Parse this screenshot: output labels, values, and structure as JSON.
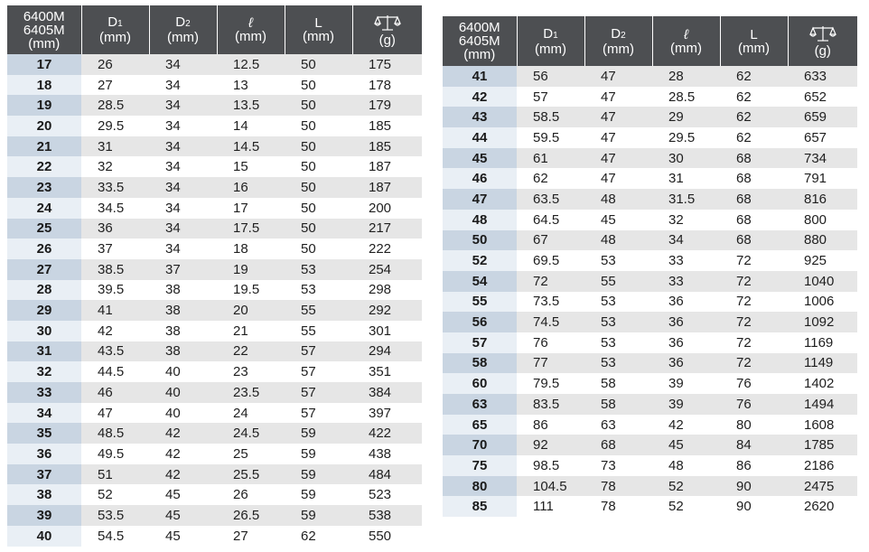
{
  "header": {
    "size_label": [
      "6400M",
      "6405M",
      "(mm)"
    ],
    "d1": {
      "letter": "D",
      "sub": "1",
      "unit": "(mm)"
    },
    "d2": {
      "letter": "D",
      "sub": "2",
      "unit": "(mm)"
    },
    "l_script": {
      "letter": "ℓ",
      "unit": "(mm)"
    },
    "L": {
      "letter": "L",
      "unit": "(mm)"
    },
    "weight": {
      "icon": "scale-icon",
      "unit": "(g)"
    }
  },
  "left_rows": [
    [
      "17",
      "26",
      "34",
      "12.5",
      "50",
      "175"
    ],
    [
      "18",
      "27",
      "34",
      "13",
      "50",
      "178"
    ],
    [
      "19",
      "28.5",
      "34",
      "13.5",
      "50",
      "179"
    ],
    [
      "20",
      "29.5",
      "34",
      "14",
      "50",
      "185"
    ],
    [
      "21",
      "31",
      "34",
      "14.5",
      "50",
      "185"
    ],
    [
      "22",
      "32",
      "34",
      "15",
      "50",
      "187"
    ],
    [
      "23",
      "33.5",
      "34",
      "16",
      "50",
      "187"
    ],
    [
      "24",
      "34.5",
      "34",
      "17",
      "50",
      "200"
    ],
    [
      "25",
      "36",
      "34",
      "17.5",
      "50",
      "217"
    ],
    [
      "26",
      "37",
      "34",
      "18",
      "50",
      "222"
    ],
    [
      "27",
      "38.5",
      "37",
      "19",
      "53",
      "254"
    ],
    [
      "28",
      "39.5",
      "38",
      "19.5",
      "53",
      "298"
    ],
    [
      "29",
      "41",
      "38",
      "20",
      "55",
      "292"
    ],
    [
      "30",
      "42",
      "38",
      "21",
      "55",
      "301"
    ],
    [
      "31",
      "43.5",
      "38",
      "22",
      "57",
      "294"
    ],
    [
      "32",
      "44.5",
      "40",
      "23",
      "57",
      "351"
    ],
    [
      "33",
      "46",
      "40",
      "23.5",
      "57",
      "384"
    ],
    [
      "34",
      "47",
      "40",
      "24",
      "57",
      "397"
    ],
    [
      "35",
      "48.5",
      "42",
      "24.5",
      "59",
      "422"
    ],
    [
      "36",
      "49.5",
      "42",
      "25",
      "59",
      "438"
    ],
    [
      "37",
      "51",
      "42",
      "25.5",
      "59",
      "484"
    ],
    [
      "38",
      "52",
      "45",
      "26",
      "59",
      "523"
    ],
    [
      "39",
      "53.5",
      "45",
      "26.5",
      "59",
      "538"
    ],
    [
      "40",
      "54.5",
      "45",
      "27",
      "62",
      "550"
    ]
  ],
  "right_rows": [
    [
      "41",
      "56",
      "47",
      "28",
      "62",
      "633"
    ],
    [
      "42",
      "57",
      "47",
      "28.5",
      "62",
      "652"
    ],
    [
      "43",
      "58.5",
      "47",
      "29",
      "62",
      "659"
    ],
    [
      "44",
      "59.5",
      "47",
      "29.5",
      "62",
      "657"
    ],
    [
      "45",
      "61",
      "47",
      "30",
      "68",
      "734"
    ],
    [
      "46",
      "62",
      "47",
      "31",
      "68",
      "791"
    ],
    [
      "47",
      "63.5",
      "48",
      "31.5",
      "68",
      "816"
    ],
    [
      "48",
      "64.5",
      "45",
      "32",
      "68",
      "800"
    ],
    [
      "50",
      "67",
      "48",
      "34",
      "68",
      "880"
    ],
    [
      "52",
      "69.5",
      "53",
      "33",
      "72",
      "925"
    ],
    [
      "54",
      "72",
      "55",
      "33",
      "72",
      "1040"
    ],
    [
      "55",
      "73.5",
      "53",
      "36",
      "72",
      "1006"
    ],
    [
      "56",
      "74.5",
      "53",
      "36",
      "72",
      "1092"
    ],
    [
      "57",
      "76",
      "53",
      "36",
      "72",
      "1169"
    ],
    [
      "58",
      "77",
      "53",
      "36",
      "72",
      "1149"
    ],
    [
      "60",
      "79.5",
      "58",
      "39",
      "76",
      "1402"
    ],
    [
      "63",
      "83.5",
      "58",
      "39",
      "76",
      "1494"
    ],
    [
      "65",
      "86",
      "63",
      "42",
      "80",
      "1608"
    ],
    [
      "70",
      "92",
      "68",
      "45",
      "84",
      "1785"
    ],
    [
      "75",
      "98.5",
      "73",
      "48",
      "86",
      "2186"
    ],
    [
      "80",
      "104.5",
      "78",
      "52",
      "90",
      "2475"
    ],
    [
      "85",
      "111",
      "78",
      "52",
      "90",
      "2620"
    ]
  ],
  "colors": {
    "header_bg": "#4d4f52",
    "row_odd": "#e6e6e6",
    "size_col_odd": "#c9d5e2",
    "size_col_even": "#e9eff5"
  }
}
